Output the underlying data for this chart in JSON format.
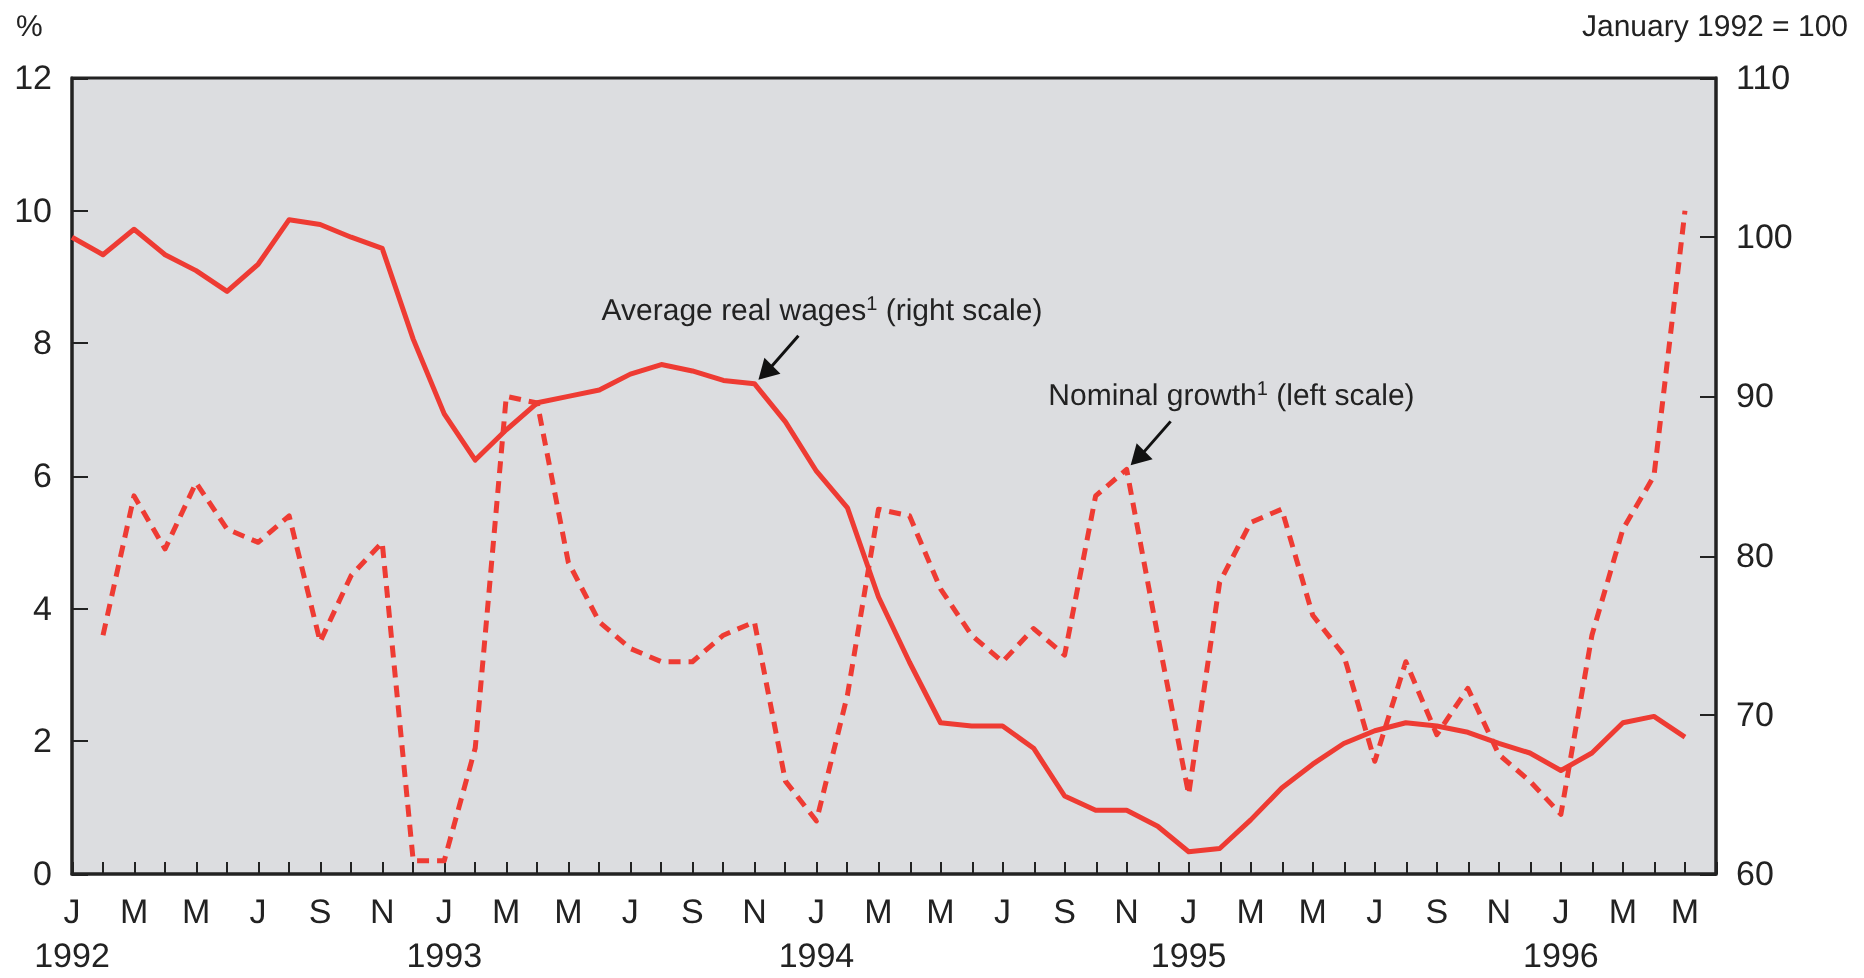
{
  "chart_data": {
    "type": "line",
    "ylabel": "%",
    "y2label": "January 1992 = 100",
    "categories": [
      "J\n1992",
      null,
      "M",
      null,
      "M",
      null,
      "J",
      null,
      "S",
      null,
      "N",
      null,
      "J\n1993",
      null,
      "M",
      null,
      "M",
      null,
      "J",
      null,
      "S",
      null,
      "N",
      null,
      "J\n1994",
      null,
      "M",
      null,
      "M",
      null,
      "J",
      null,
      "S",
      null,
      "N",
      null,
      "J\n1995",
      null,
      "M",
      null,
      "M",
      null,
      "J",
      null,
      "S",
      null,
      "N",
      null,
      "J\n1996",
      null,
      "M",
      null,
      "M",
      null
    ],
    "series": [
      {
        "color": "#ee3b33",
        "axis": "y2",
        "line_style": "solid",
        "values": [
          100,
          98.9,
          100.5,
          98.9,
          97.9,
          96.6,
          98.3,
          101.1,
          100.8,
          100,
          99.3,
          93.6,
          88.9,
          86,
          87.9,
          89.6,
          90,
          90.4,
          91.4,
          92,
          91.6,
          91,
          90.8,
          88.4,
          85.3,
          83,
          77.4,
          73.3,
          69.5,
          69.3,
          69.3,
          67.9,
          64.9,
          64,
          64,
          63,
          61.4,
          61.6,
          63.4,
          65.4,
          66.9,
          68.2,
          69,
          69.5,
          69.3,
          68.9,
          68.2,
          67.6,
          66.5,
          67.6,
          69.5,
          69.9,
          68.6,
          null
        ]
      },
      {
        "color": "#ee3b33",
        "axis": "y",
        "line_style": "dashed",
        "values": [
          null,
          3.6,
          5.7,
          4.9,
          5.9,
          5.2,
          5.0,
          5.4,
          3.5,
          4.5,
          5.0,
          0.2,
          0.2,
          1.9,
          7.2,
          7.1,
          4.7,
          3.8,
          3.4,
          3.2,
          3.2,
          3.6,
          3.8,
          1.4,
          0.8,
          2.7,
          5.5,
          5.4,
          4.3,
          3.6,
          3.2,
          3.7,
          3.3,
          5.7,
          6.1,
          3.6,
          1.2,
          4.4,
          5.3,
          5.5,
          3.9,
          3.3,
          1.7,
          3.2,
          2.1,
          2.8,
          1.8,
          1.4,
          0.9,
          3.6,
          5.2,
          6.0,
          10.0,
          null
        ]
      }
    ],
    "ylim": [
      0,
      12
    ],
    "yticks": [
      0,
      2,
      4,
      6,
      8,
      10,
      12
    ],
    "y2lim": [
      60,
      110
    ],
    "y2ticks": [
      60,
      70,
      80,
      90,
      100,
      110
    ],
    "annotations": [
      "Average real wages$^{1}$ (right scale)",
      "Nominal growth$^{1}$ (left scale)"
    ],
    "marker": "none"
  }
}
